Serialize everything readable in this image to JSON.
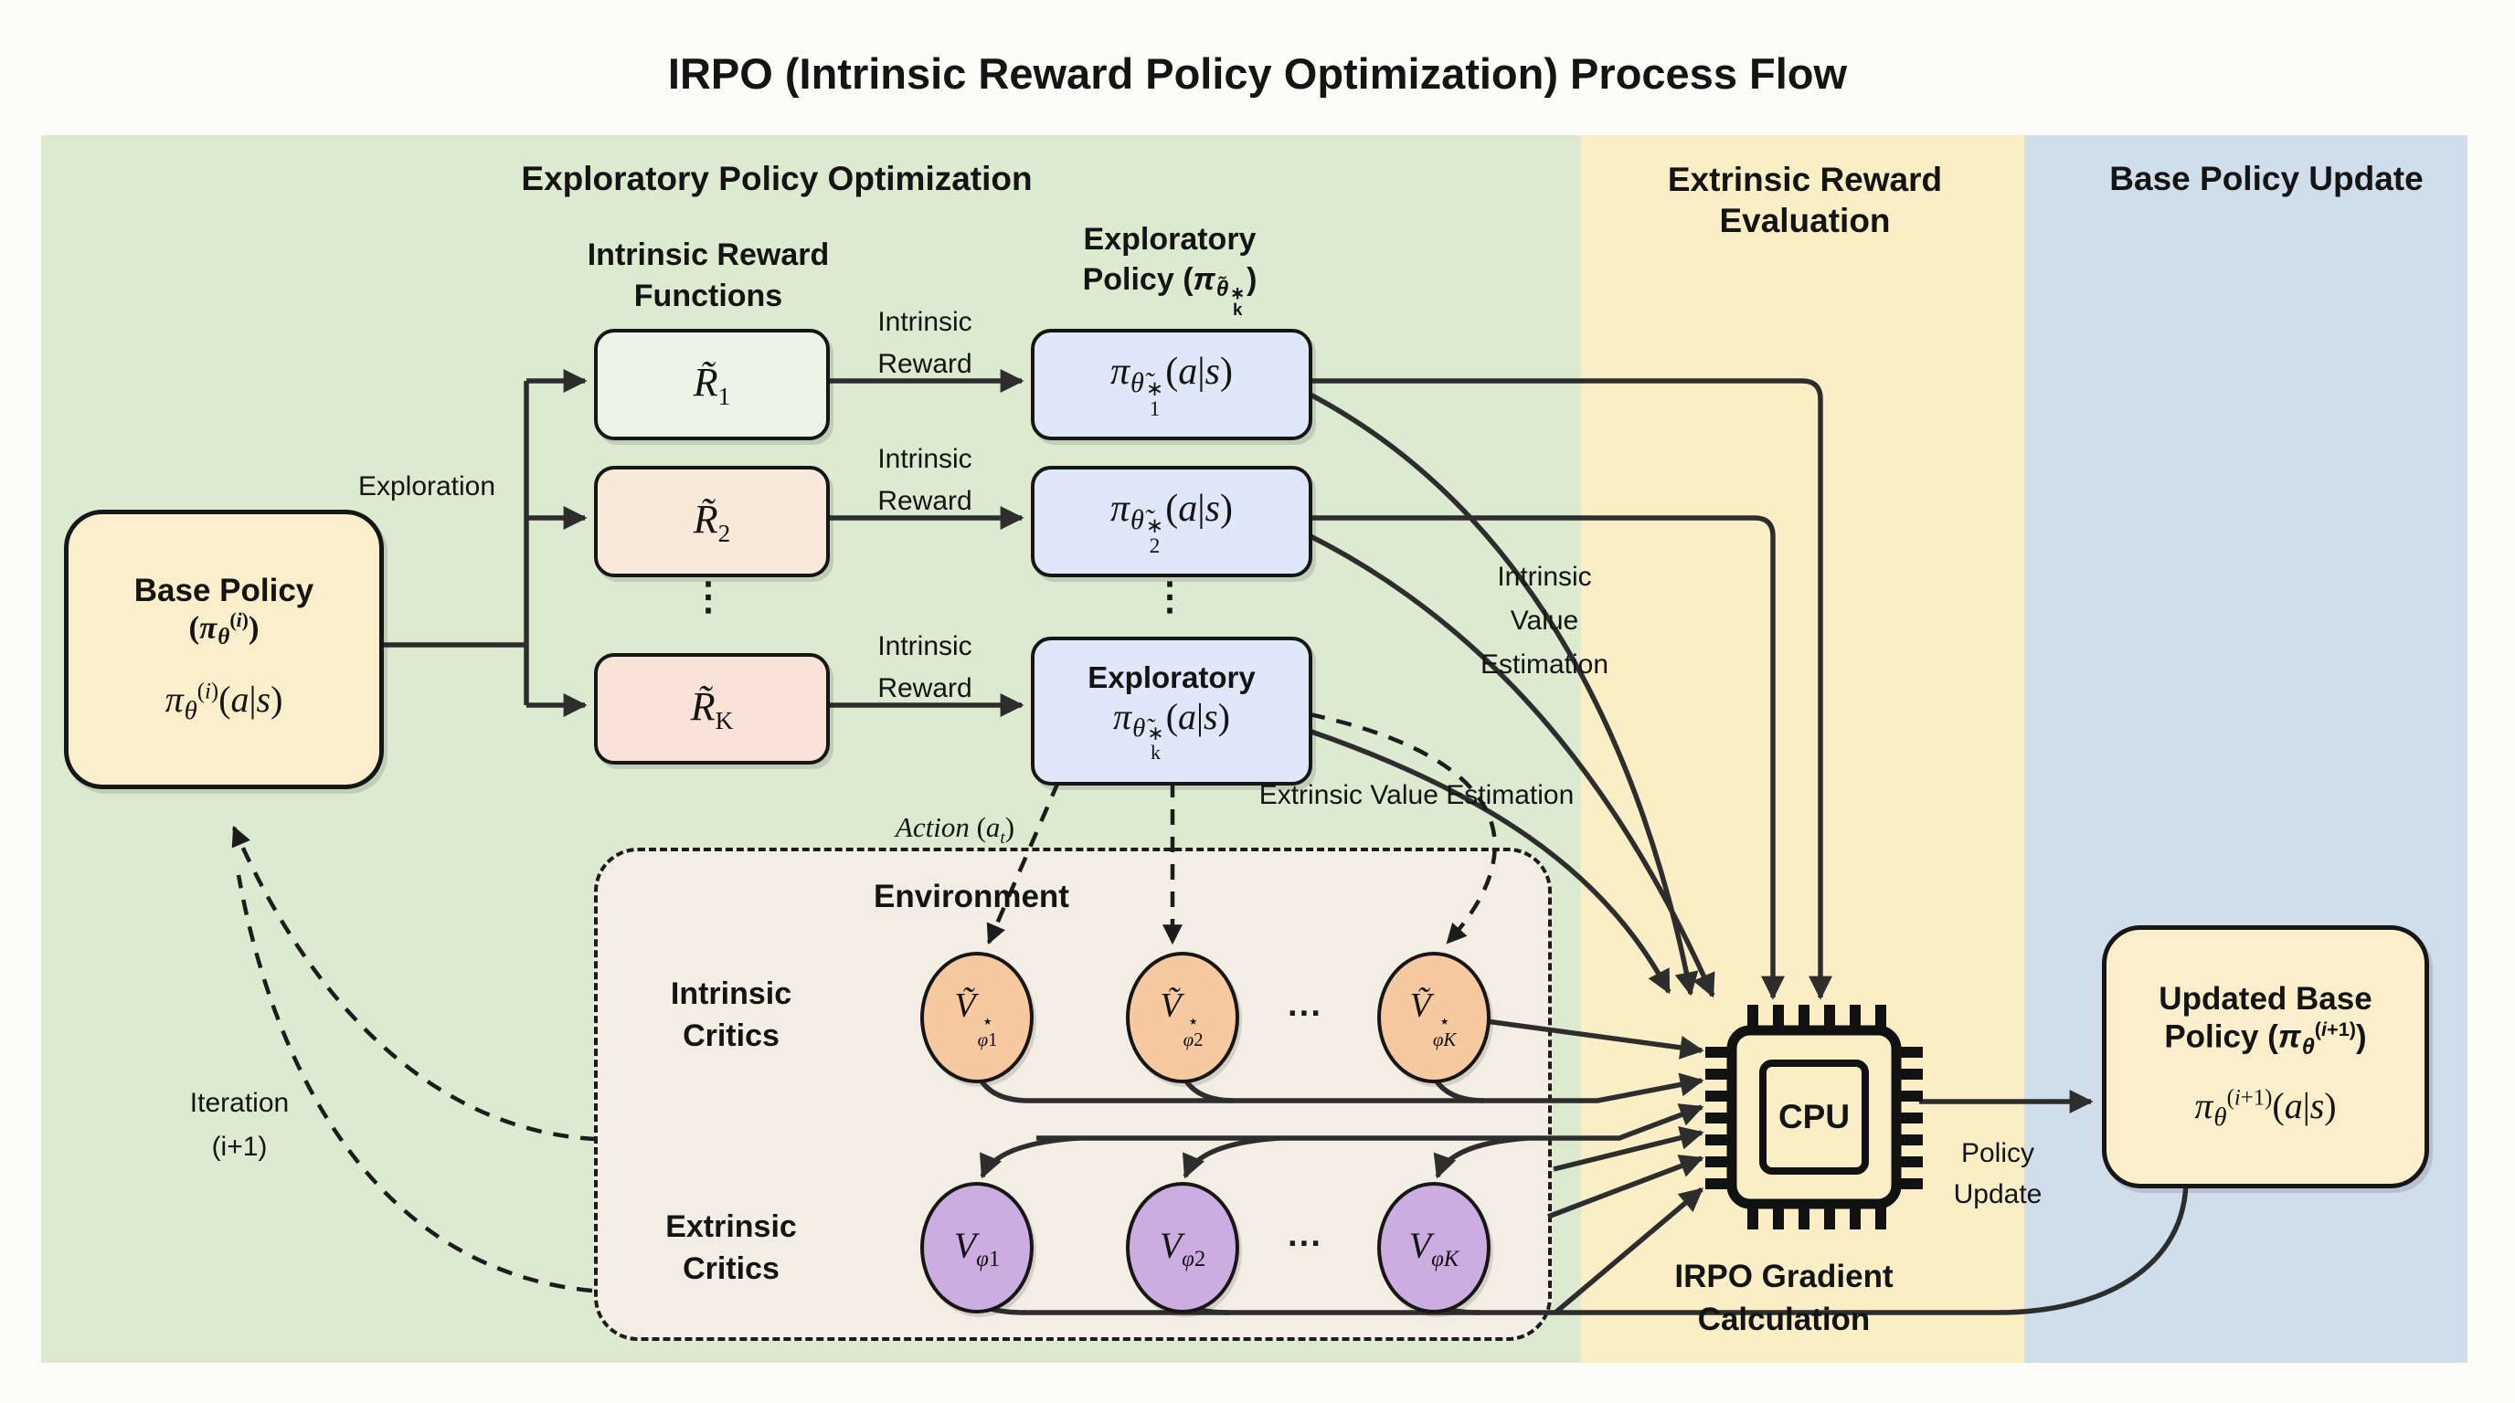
{
  "title": "IRPO (Intrinsic Reward Policy Optimization) Process Flow",
  "regions": {
    "exploratory": {
      "label": "Exploratory Policy Optimization"
    },
    "extrinsic": {
      "label_line1": "Extrinsic Reward",
      "label_line2": "Evaluation"
    },
    "base_update": {
      "label": "Base Policy Update"
    }
  },
  "base_policy": {
    "name_line": "Base Policy",
    "symbol_html": "(<i>π</i><i class='lo'>θ</i><sup>(<i>i</i>)</sup>)",
    "formula_html": "<i>π</i><i class='lo'>θ</i><sup>(<i>i</i>)</sup>(<i>a</i>|<i>s</i>)"
  },
  "intrinsic_reward_functions": {
    "header_line1": "Intrinsic Reward",
    "header_line2": "Functions",
    "boxes": [
      {
        "formula_html": "<i>R̃</i><sub>1</sub>"
      },
      {
        "formula_html": "<i>R̃</i><sub>2</sub>"
      },
      {
        "formula_html": "<i>R̃</i><sub>K</sub>"
      }
    ],
    "dots": "⋮"
  },
  "exploratory_policy": {
    "header_line1": "Exploratory",
    "header_line2_html": "Policy (<i>π</i><i class='lo'>θ̃</i><span class='ss'><span>∗</span><span>k</span></span>)",
    "box1_html": "<i>π</i><i class='lo'>θ̃</i><span class='ss'><span>∗</span><span>1</span></span>(<i>a</i>|<i>s</i>)",
    "box2_html": "<i>π</i><i class='lo'>θ̃</i><span class='ss'><span>∗</span><span>2</span></span>(<i>a</i>|<i>s</i>)",
    "boxk_title": "Exploratory",
    "boxk_html": "<i>π</i><i class='lo'>θ̃</i><span class='ss'><span>∗</span><span>k</span></span>(<i>a</i>|<i>s</i>)",
    "dots": "⋮"
  },
  "arrow_labels": {
    "exploration": "Exploration",
    "intrinsic_reward_line1": "Intrinsic",
    "intrinsic_reward_line2": "Reward",
    "action_html": "<i>Action</i> (<i>a</i><sub><i>t</i></sub>)",
    "extrinsic_value": "Extrinsic Value Estimation",
    "intrinsic_value_line1": "Intrinsic",
    "intrinsic_value_line2": "Value",
    "intrinsic_value_line3": "Estimation",
    "iteration_line1": "Iteration",
    "iteration_line2": "(i+1)",
    "policy_update_line1": "Policy",
    "policy_update_line2": "Update"
  },
  "environment": {
    "label": "Environment",
    "intrinsic_critics_line1": "Intrinsic",
    "intrinsic_critics_line2": "Critics",
    "extrinsic_critics_line1": "Extrinsic",
    "extrinsic_critics_line2": "Critics",
    "intrinsic_nodes": [
      {
        "formula_html": "<i>Ṽ</i><span class='ss'><span>⋆</span><span><i>φ</i>1</span></span>"
      },
      {
        "formula_html": "<i>Ṽ</i><span class='ss'><span>⋆</span><span><i>φ</i>2</span></span>"
      },
      {
        "formula_html": "<i>Ṽ</i><span class='ss'><span>⋆</span><span><i>φK</i></span></span>"
      }
    ],
    "extrinsic_nodes": [
      {
        "formula_html": "<i>V</i><sub><i>φ</i>1</sub>"
      },
      {
        "formula_html": "<i>V</i><sub><i>φ</i>2</sub>"
      },
      {
        "formula_html": "<i>V</i><sub><i>φK</i></sub>"
      }
    ],
    "hdots": "···"
  },
  "cpu": {
    "label": "CPU",
    "caption_line1": "IRPO Gradient",
    "caption_line2": "Calculation"
  },
  "updated_policy": {
    "name_line": "Updated Base",
    "symbol_html": "Policy (<i>π</i><i class='lo'>θ</i><sup>(<i>i</i>+1)</sup>)",
    "formula_html": "<i>π</i><i class='lo'>θ</i><sup>(<i>i</i>+1)</sup>(<i>a</i>|<i>s</i>)"
  },
  "colors": {
    "region_green": "#dcead0",
    "region_yellow": "#faeec7",
    "region_blue": "#d0ddeb",
    "env_fill": "#f3eee3",
    "box_cream": "#faeecb",
    "box_green": "#edf3e6",
    "box_peach": "#f8e9d9",
    "box_pink": "#f9e3d9",
    "box_blue": "#dee8f8",
    "node_orange": "#f6c9a0",
    "node_purple": "#ccade1",
    "line": "#2d2d2d"
  }
}
